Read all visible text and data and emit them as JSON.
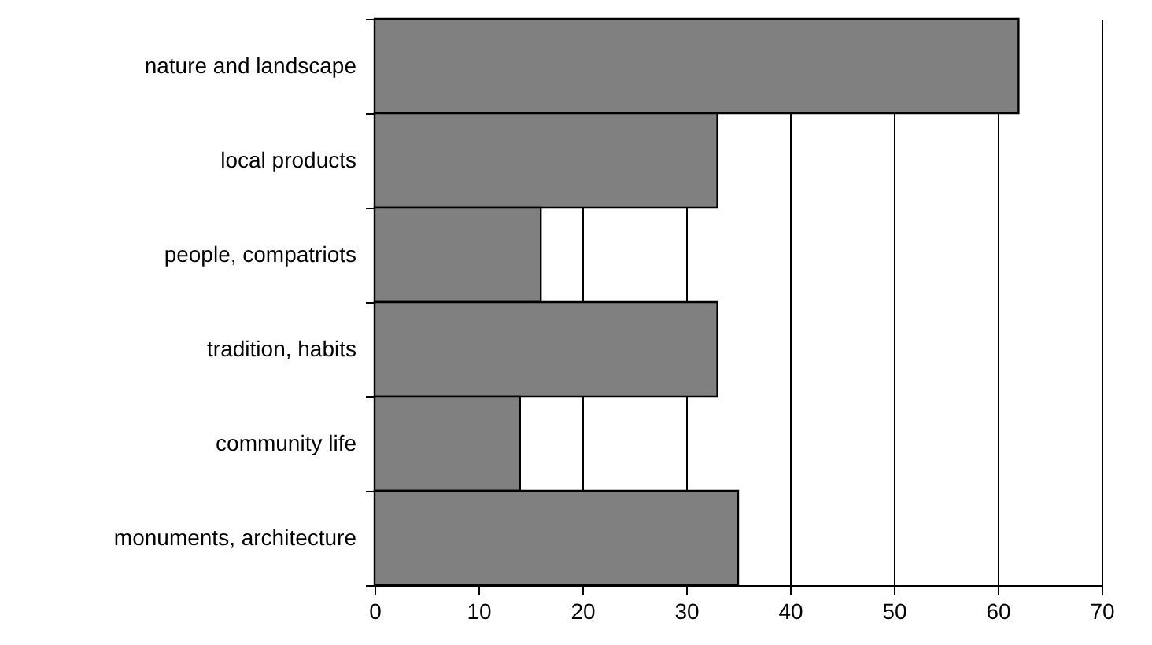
{
  "chart_data": {
    "type": "bar",
    "orientation": "horizontal",
    "categories": [
      "nature and landscape",
      "local products",
      "people, compatriots",
      "tradition, habits",
      "community life",
      "monuments, architecture"
    ],
    "values": [
      62,
      33,
      16,
      33,
      14,
      35
    ],
    "color": "#808080",
    "xlim": [
      0,
      70
    ],
    "xticks": [
      0,
      10,
      20,
      30,
      40,
      50,
      60,
      70
    ],
    "grid": "x"
  }
}
